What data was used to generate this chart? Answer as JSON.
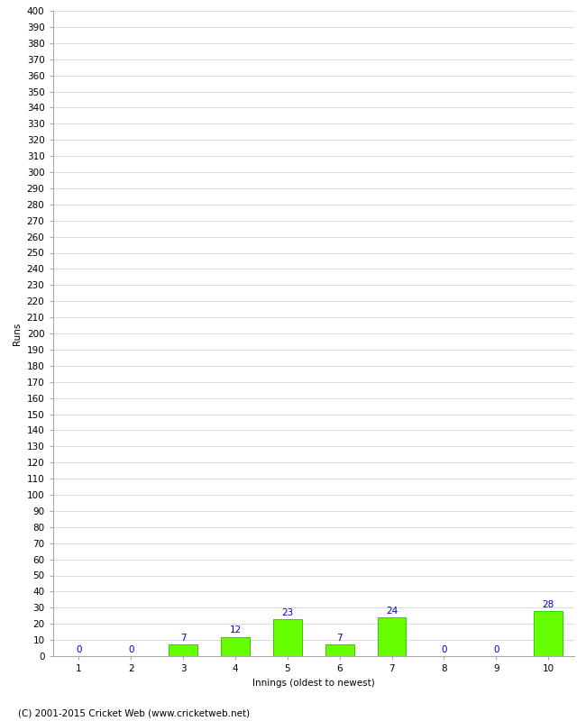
{
  "title": "",
  "values": [
    0,
    0,
    7,
    12,
    23,
    7,
    24,
    0,
    0,
    28
  ],
  "categories": [
    "1",
    "2",
    "3",
    "4",
    "5",
    "6",
    "7",
    "8",
    "9",
    "10"
  ],
  "xlabel": "Innings (oldest to newest)",
  "ylabel": "Runs",
  "ylim": [
    0,
    400
  ],
  "ytick_step": 10,
  "bar_color": "#66ff00",
  "bar_edge_color": "#33cc00",
  "label_color": "#0000cc",
  "background_color": "#ffffff",
  "grid_color": "#cccccc",
  "footer": "(C) 2001-2015 Cricket Web (www.cricketweb.net)",
  "label_fontsize": 7.5,
  "axis_fontsize": 7.5,
  "footer_fontsize": 7.5,
  "bar_width": 0.55
}
